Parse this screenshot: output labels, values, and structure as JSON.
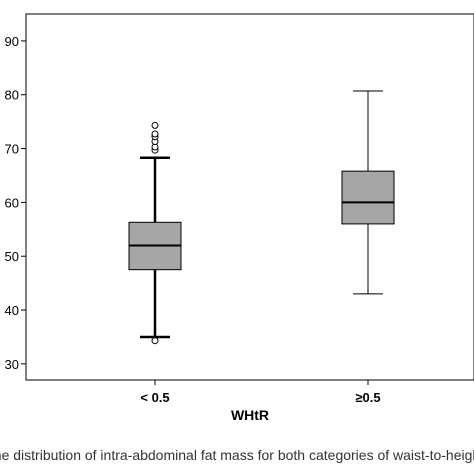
{
  "chart_data": {
    "type": "boxplot",
    "title": "",
    "xlabel": "WHtR",
    "ylabel": "",
    "ylim": [
      27,
      95
    ],
    "yticks": [
      30,
      40,
      50,
      60,
      70,
      80,
      90
    ],
    "grid": false,
    "categories": [
      "< 0.5",
      "≥0.5"
    ],
    "boxes": [
      {
        "category": "< 0.5",
        "whisker_low": 35,
        "q1": 47.5,
        "median": 52,
        "q3": 56.3,
        "whisker_high": 68.3,
        "outliers": [
          34.3,
          69.7,
          70.3,
          71.3,
          72.2,
          72.7,
          74.3
        ]
      },
      {
        "category": "≥0.5",
        "whisker_low": 43,
        "q1": 56,
        "median": 60,
        "q3": 65.8,
        "whisker_high": 80.7,
        "outliers": []
      }
    ],
    "box_fill": "#a6a6a6",
    "stroke": "#000000"
  },
  "caption": "the distribution of intra-abdominal fat mass for both categories of waist-to-height"
}
